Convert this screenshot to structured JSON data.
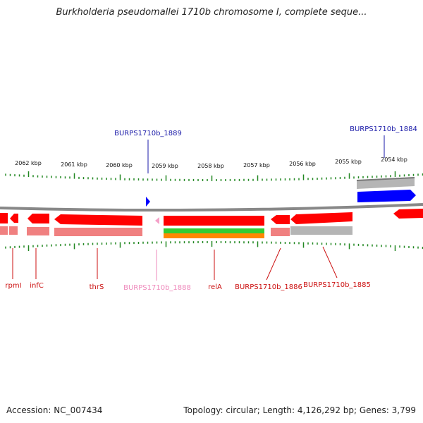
{
  "title": "Burkholderia pseudomallei 1710b chromosome I, complete seque...",
  "footer": {
    "accession": "Accession: NC_007434",
    "summary": "Topology: circular; Length: 4,126,292 bp; Genes: 3,799"
  },
  "scale_labels": [
    "2062 kbp",
    "2061 kbp",
    "2060 kbp",
    "2059 kbp",
    "2058 kbp",
    "2057 kbp",
    "2056 kbp",
    "2055 kbp",
    "2054 kbp"
  ],
  "gene_labels_top": [
    {
      "text": "BURPS1710b_1889",
      "color": "#1a1aa8"
    },
    {
      "text": "BURPS1710b_1884",
      "color": "#1a1aa8"
    }
  ],
  "gene_labels_bottom": [
    {
      "text": "rpmI",
      "color": "#cc1111"
    },
    {
      "text": "infC",
      "color": "#cc1111"
    },
    {
      "text": "thrS",
      "color": "#cc1111"
    },
    {
      "text": "BURPS1710b_1888",
      "color": "#ee88bb"
    },
    {
      "text": "relA",
      "color": "#cc1111"
    },
    {
      "text": "BURPS1710b_1886",
      "color": "#cc1111"
    },
    {
      "text": "BURPS1710b_1885",
      "color": "#cc1111"
    }
  ],
  "colors": {
    "cds": "#ff0000",
    "cds_light": "#f08080",
    "pseudo": "#f4a0c8",
    "blue": "#0000ff",
    "grey": "#999999",
    "green": "#33cc33",
    "orange": "#ff8800",
    "tick": "#228822",
    "backbone": "#888888"
  }
}
